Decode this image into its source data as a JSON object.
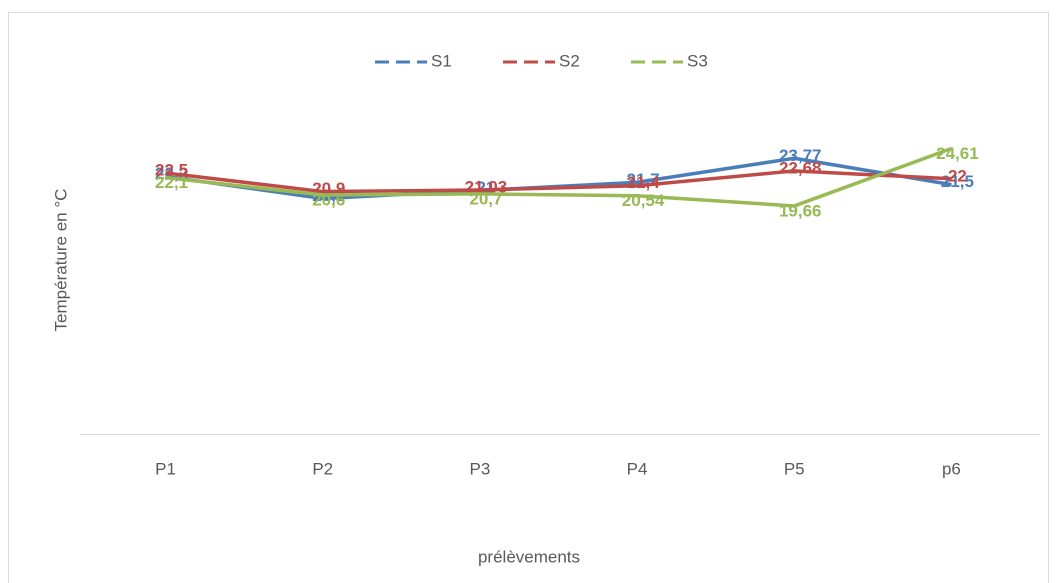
{
  "chart_data": {
    "type": "line",
    "x_label": "prélèvements",
    "y_label": "Température en °C",
    "categories": [
      "P1",
      "P2",
      "P3",
      "P4",
      "P5",
      "p6"
    ],
    "ylim": [
      0,
      30
    ],
    "legend": "top",
    "series": [
      {
        "name": "S1",
        "color": "#4a7ebb",
        "values": [
          22.2,
          20.3,
          21,
          21.7,
          23.77,
          21.5
        ],
        "value_labels": [
          "22,2",
          "20,3",
          "21",
          "21,7",
          "23,77",
          "21,5"
        ]
      },
      {
        "name": "S2",
        "color": "#be4b48",
        "values": [
          22.5,
          20.9,
          21.03,
          21.4,
          22.68,
          22
        ],
        "value_labels": [
          "22,5",
          "20,9",
          "21,03",
          "21,4",
          "22,68",
          "22"
        ]
      },
      {
        "name": "S3",
        "color": "#98b954",
        "values": [
          22.1,
          20.6,
          20.7,
          20.54,
          19.66,
          24.61
        ],
        "value_labels": [
          "22,1",
          "20,6",
          "20,7",
          "20,54",
          "19,66",
          "24,61"
        ]
      }
    ]
  }
}
